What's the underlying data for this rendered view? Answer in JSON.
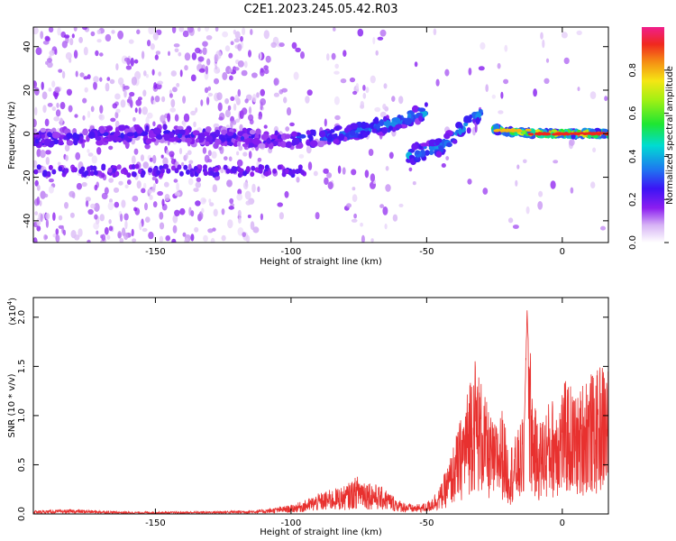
{
  "title": "C2E1.2023.245.05.42.R03",
  "chart_data": [
    {
      "type": "heatmap",
      "xlabel": "Height of straight line (km)",
      "ylabel": "Frequency (Hz)",
      "xlim": [
        -195,
        17
      ],
      "ylim": [
        -50,
        49
      ],
      "xticks": [
        -150,
        -100,
        -50,
        0
      ],
      "yticks": [
        -40,
        -20,
        0,
        20,
        40
      ],
      "colorbar": {
        "label": "Normalized spectral amplitude",
        "range": [
          0,
          1
        ],
        "ticks": [
          "0.0",
          "0.2",
          "0.4",
          "0.6",
          "0.8"
        ]
      },
      "ridges": [
        {
          "x": [
            -195,
            -150,
            -120,
            -100,
            -80,
            -65,
            -55,
            -50
          ],
          "y": [
            -2,
            0,
            -2,
            -3,
            0,
            4,
            8,
            10
          ]
        },
        {
          "x": [
            -57,
            -45,
            -35,
            -30
          ],
          "y": [
            -10,
            -6,
            4,
            10
          ]
        },
        {
          "x": [
            -25,
            -20,
            -10,
            0,
            17
          ],
          "y": [
            2,
            1,
            0,
            0,
            0
          ]
        }
      ]
    },
    {
      "type": "line",
      "xlabel": "Height of straight line (km)",
      "ylabel": "SNR (10 * v/v)",
      "yscale_label": "(x10",
      "yscale_exp": "4",
      "yscale_close": ")",
      "xlim": [
        -195,
        17
      ],
      "ylim": [
        0,
        2.2
      ],
      "xticks": [
        -150,
        -100,
        -50,
        0
      ],
      "yticks": [
        "0.0",
        "0.5",
        "1.0",
        "1.5",
        "2.0"
      ],
      "ytick_values": [
        0,
        0.5,
        1.0,
        1.5,
        2.0
      ],
      "color": "#e8312f",
      "series": [
        {
          "x": [
            -195,
            -180,
            -160,
            -140,
            -120,
            -110,
            -100,
            -95,
            -90,
            -85,
            -80,
            -75,
            -70,
            -65,
            -60,
            -55,
            -50,
            -45,
            -42,
            -38,
            -35,
            -33,
            -30,
            -27,
            -25,
            -22,
            -20,
            -17,
            -14,
            -13,
            -11,
            -9,
            -7,
            -5,
            -3,
            -1,
            0,
            2,
            4,
            6,
            8,
            10,
            12,
            14,
            17
          ],
          "y": [
            0.03,
            0.04,
            0.02,
            0.02,
            0.03,
            0.04,
            0.08,
            0.12,
            0.18,
            0.22,
            0.25,
            0.35,
            0.28,
            0.22,
            0.12,
            0.08,
            0.1,
            0.25,
            0.45,
            0.8,
            1.1,
            1.5,
            1.2,
            0.9,
            0.8,
            0.95,
            0.6,
            0.7,
            0.9,
            2.15,
            1.1,
            0.8,
            0.9,
            1.0,
            1.05,
            1.1,
            1.15,
            1.2,
            1.1,
            1.05,
            1.25,
            1.3,
            1.2,
            1.35,
            1.35
          ]
        }
      ]
    }
  ]
}
